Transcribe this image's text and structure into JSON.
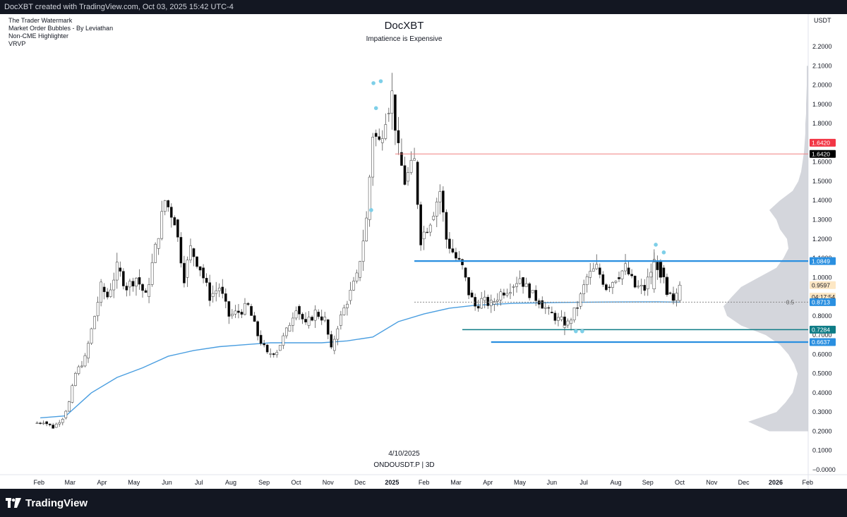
{
  "header": {
    "attribution": "DocXBT created with TradingView.com, Oct 03, 2025 15:42 UTC-4"
  },
  "indicators": [
    "The Trader Watermark",
    "Market Order Bubbles - By Leviathan",
    "Non-CME Highlighter",
    "VRVP"
  ],
  "watermark": {
    "title": "DocXBT",
    "subtitle": "Impatience is Expensive",
    "date": "4/10/2025",
    "symbol": "ONDOUSDT.P | 3D"
  },
  "footer": {
    "logo_text": "TradingView"
  },
  "colors": {
    "bull_body": "#ffffff",
    "bear_body": "#000000",
    "wick": "#555555",
    "ma_line": "#4a9ee0",
    "level_line": "#2a8fe0",
    "red_line": "#f08080",
    "profile": "#c9ccd3",
    "bubble": "#7ecfe8"
  },
  "chart_data": {
    "type": "candlestick",
    "symbol": "ONDOUSDT.P",
    "timeframe": "3D",
    "currency": "USDT",
    "y_axis": {
      "unit_label": "USDT",
      "ticks": [
        "2.2000",
        "2.1000",
        "2.0000",
        "1.9000",
        "1.8000",
        "1.7000",
        "1.6000",
        "1.5000",
        "1.4000",
        "1.3000",
        "1.2000",
        "1.1000",
        "1.0000",
        "0.9000",
        "0.8000",
        "0.7000",
        "0.6000",
        "0.5000",
        "0.4000",
        "0.3000",
        "0.2000",
        "0.1000",
        "−0.0000"
      ],
      "range": [
        0.0,
        2.2
      ]
    },
    "x_axis": {
      "labels": [
        {
          "label": "Feb",
          "t": 0.16
        },
        {
          "label": "Mar",
          "t": 1.13
        },
        {
          "label": "Apr",
          "t": 2.13
        },
        {
          "label": "May",
          "t": 3.13
        },
        {
          "label": "Jun",
          "t": 4.16
        },
        {
          "label": "Jul",
          "t": 5.16
        },
        {
          "label": "Aug",
          "t": 6.16
        },
        {
          "label": "Sep",
          "t": 7.2
        },
        {
          "label": "Oct",
          "t": 8.2
        },
        {
          "label": "Nov",
          "t": 9.2
        },
        {
          "label": "Dec",
          "t": 10.2
        },
        {
          "label": "2025",
          "t": 11.2,
          "bold": true
        },
        {
          "label": "Feb",
          "t": 12.2
        },
        {
          "label": "Mar",
          "t": 13.2
        },
        {
          "label": "Apr",
          "t": 14.2
        },
        {
          "label": "May",
          "t": 15.2
        },
        {
          "label": "Jun",
          "t": 16.2
        },
        {
          "label": "Jul",
          "t": 17.2
        },
        {
          "label": "Aug",
          "t": 18.2
        },
        {
          "label": "Sep",
          "t": 19.2
        },
        {
          "label": "Oct",
          "t": 20.2
        },
        {
          "label": "Nov",
          "t": 21.2
        },
        {
          "label": "Dec",
          "t": 22.2
        },
        {
          "label": "2026",
          "t": 23.2,
          "bold": true
        },
        {
          "label": "Feb",
          "t": 24.2
        }
      ]
    },
    "price_path": [
      [
        0.0,
        0.24
      ],
      [
        0.3,
        0.25
      ],
      [
        0.6,
        0.22
      ],
      [
        0.9,
        0.27
      ],
      [
        1.1,
        0.35
      ],
      [
        1.3,
        0.5
      ],
      [
        1.6,
        0.58
      ],
      [
        1.9,
        0.8
      ],
      [
        2.1,
        0.95
      ],
      [
        2.3,
        0.9
      ],
      [
        2.6,
        1.05
      ],
      [
        2.9,
        0.95
      ],
      [
        3.2,
        1.0
      ],
      [
        3.5,
        0.9
      ],
      [
        3.8,
        1.15
      ],
      [
        4.1,
        1.4
      ],
      [
        4.4,
        1.3
      ],
      [
        4.7,
        1.0
      ],
      [
        4.9,
        1.15
      ],
      [
        5.2,
        1.05
      ],
      [
        5.5,
        0.9
      ],
      [
        5.8,
        0.95
      ],
      [
        6.1,
        0.8
      ],
      [
        6.4,
        0.82
      ],
      [
        6.7,
        0.85
      ],
      [
        7.0,
        0.7
      ],
      [
        7.3,
        0.6
      ],
      [
        7.6,
        0.62
      ],
      [
        7.9,
        0.72
      ],
      [
        8.2,
        0.85
      ],
      [
        8.5,
        0.75
      ],
      [
        8.8,
        0.82
      ],
      [
        9.1,
        0.78
      ],
      [
        9.3,
        0.62
      ],
      [
        9.5,
        0.75
      ],
      [
        9.8,
        0.88
      ],
      [
        10.1,
        1.0
      ],
      [
        10.4,
        1.3
      ],
      [
        10.6,
        1.75
      ],
      [
        10.8,
        1.7
      ],
      [
        11.0,
        1.85
      ],
      [
        11.2,
        1.95
      ],
      [
        11.4,
        1.65
      ],
      [
        11.6,
        1.5
      ],
      [
        11.9,
        1.6
      ],
      [
        12.1,
        1.2
      ],
      [
        12.4,
        1.3
      ],
      [
        12.7,
        1.45
      ],
      [
        12.9,
        1.2
      ],
      [
        13.2,
        1.1
      ],
      [
        13.4,
        1.05
      ],
      [
        13.6,
        0.92
      ],
      [
        13.8,
        0.85
      ],
      [
        14.0,
        0.88
      ],
      [
        14.3,
        0.86
      ],
      [
        14.6,
        0.92
      ],
      [
        14.9,
        0.95
      ],
      [
        15.2,
        1.0
      ],
      [
        15.5,
        0.92
      ],
      [
        15.8,
        0.88
      ],
      [
        16.1,
        0.82
      ],
      [
        16.4,
        0.78
      ],
      [
        16.7,
        0.76
      ],
      [
        17.0,
        0.85
      ],
      [
        17.3,
        1.0
      ],
      [
        17.6,
        1.05
      ],
      [
        17.9,
        0.95
      ],
      [
        18.2,
        1.0
      ],
      [
        18.5,
        1.05
      ],
      [
        18.8,
        0.95
      ],
      [
        19.1,
        0.94
      ],
      [
        19.4,
        1.08
      ],
      [
        19.6,
        1.05
      ],
      [
        19.8,
        0.92
      ],
      [
        20.0,
        0.88
      ],
      [
        20.2,
        0.96
      ]
    ],
    "candles": [
      {
        "t": 16.6,
        "o": 0.74,
        "h": 0.76,
        "l": 0.7,
        "c": 0.75
      },
      {
        "t": 19.4,
        "o": 0.94,
        "h": 1.13,
        "l": 0.92,
        "c": 1.08
      },
      {
        "t": 19.6,
        "o": 1.08,
        "h": 1.09,
        "l": 0.97,
        "c": 1.0
      },
      {
        "t": 19.8,
        "o": 1.0,
        "h": 1.02,
        "l": 0.9,
        "c": 0.91
      },
      {
        "t": 20.0,
        "o": 0.91,
        "h": 0.93,
        "l": 0.86,
        "c": 0.88
      },
      {
        "t": 20.2,
        "o": 0.88,
        "h": 0.98,
        "l": 0.87,
        "c": 0.96
      }
    ],
    "moving_average": [
      [
        0.2,
        0.27
      ],
      [
        1.0,
        0.28
      ],
      [
        1.8,
        0.4
      ],
      [
        2.6,
        0.48
      ],
      [
        3.4,
        0.53
      ],
      [
        4.2,
        0.59
      ],
      [
        5.0,
        0.62
      ],
      [
        5.8,
        0.64
      ],
      [
        6.6,
        0.65
      ],
      [
        7.4,
        0.66
      ],
      [
        8.2,
        0.66
      ],
      [
        9.0,
        0.66
      ],
      [
        9.8,
        0.67
      ],
      [
        10.6,
        0.69
      ],
      [
        11.4,
        0.77
      ],
      [
        12.2,
        0.81
      ],
      [
        13.0,
        0.84
      ],
      [
        13.8,
        0.855
      ],
      [
        15.0,
        0.865
      ],
      [
        16.5,
        0.87
      ],
      [
        18.0,
        0.872
      ],
      [
        19.5,
        0.873
      ],
      [
        20.2,
        0.8713
      ]
    ],
    "horizontal_levels": [
      {
        "price": 1.642,
        "t_start": 11.3,
        "t_end": 24.0,
        "style": "red-thin"
      },
      {
        "price": 1.0849,
        "t_start": 11.9,
        "t_end": 24.0,
        "style": "blue-thick"
      },
      {
        "price": 0.8713,
        "t_start": 11.9,
        "t_end": 24.0,
        "style": "dotted",
        "label": "0.5"
      },
      {
        "price": 0.7284,
        "t_start": 13.4,
        "t_end": 24.0,
        "style": "teal-thick"
      },
      {
        "price": 0.6637,
        "t_start": 14.3,
        "t_end": 24.0,
        "style": "blue-thick"
      }
    ],
    "price_labels": [
      {
        "text": "1.6420",
        "price": 1.7,
        "bg": "#f23645",
        "fg": "#ffffff"
      },
      {
        "text": "1.6420",
        "price": 1.642,
        "bg": "#000000",
        "fg": "#ffffff"
      },
      {
        "text": "1.0849",
        "price": 1.0849,
        "bg": "#2a8fe0",
        "fg": "#ffffff"
      },
      {
        "text": "0.9597",
        "price": 0.9597,
        "bg": "#fde7c4",
        "fg": "#131722"
      },
      {
        "text": "04:17:54",
        "price": 0.9,
        "bg": "#fde7c4",
        "fg": "#131722"
      },
      {
        "text": "0.8713",
        "price": 0.8713,
        "bg": "#2a8fe0",
        "fg": "#ffffff"
      },
      {
        "text": "0.7284",
        "price": 0.7284,
        "bg": "#0e7c86",
        "fg": "#ffffff"
      },
      {
        "text": "0.6637",
        "price": 0.6637,
        "bg": "#2a8fe0",
        "fg": "#ffffff"
      }
    ],
    "bubbles": [
      {
        "t": 10.62,
        "price": 2.01
      },
      {
        "t": 10.85,
        "price": 2.02
      },
      {
        "t": 10.7,
        "price": 1.88
      },
      {
        "t": 10.55,
        "price": 1.35
      },
      {
        "t": 19.45,
        "price": 1.17
      },
      {
        "t": 19.7,
        "price": 1.13
      },
      {
        "t": 16.95,
        "price": 0.72
      },
      {
        "t": 17.15,
        "price": 0.72
      }
    ],
    "volume_profile": [
      [
        0.2,
        55
      ],
      [
        0.25,
        85
      ],
      [
        0.3,
        45
      ],
      [
        0.35,
        32
      ],
      [
        0.4,
        22
      ],
      [
        0.45,
        18
      ],
      [
        0.5,
        15
      ],
      [
        0.55,
        20
      ],
      [
        0.6,
        28
      ],
      [
        0.65,
        40
      ],
      [
        0.7,
        60
      ],
      [
        0.75,
        95
      ],
      [
        0.8,
        115
      ],
      [
        0.85,
        120
      ],
      [
        0.9,
        108
      ],
      [
        0.95,
        95
      ],
      [
        1.0,
        70
      ],
      [
        1.05,
        45
      ],
      [
        1.1,
        35
      ],
      [
        1.15,
        28
      ],
      [
        1.2,
        30
      ],
      [
        1.25,
        40
      ],
      [
        1.3,
        45
      ],
      [
        1.35,
        55
      ],
      [
        1.4,
        40
      ],
      [
        1.45,
        22
      ],
      [
        1.5,
        14
      ],
      [
        1.55,
        10
      ],
      [
        1.6,
        8
      ],
      [
        1.65,
        6
      ],
      [
        1.7,
        5
      ],
      [
        1.75,
        4
      ],
      [
        1.8,
        4
      ],
      [
        1.85,
        3
      ],
      [
        1.9,
        3
      ],
      [
        2.0,
        2
      ],
      [
        2.1,
        2
      ]
    ]
  }
}
